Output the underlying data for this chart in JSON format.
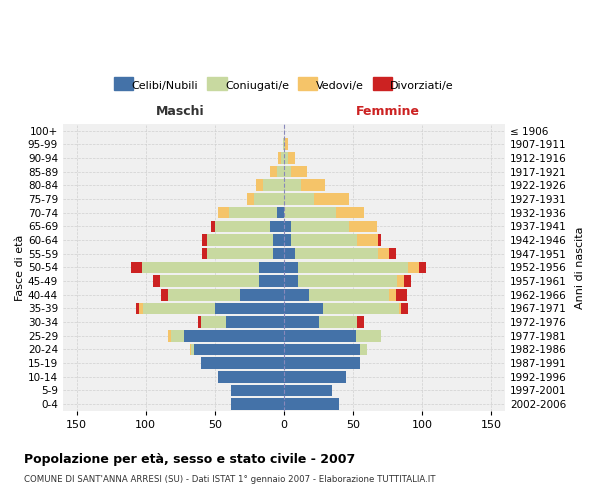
{
  "age_groups": [
    "0-4",
    "5-9",
    "10-14",
    "15-19",
    "20-24",
    "25-29",
    "30-34",
    "35-39",
    "40-44",
    "45-49",
    "50-54",
    "55-59",
    "60-64",
    "65-69",
    "70-74",
    "75-79",
    "80-84",
    "85-89",
    "90-94",
    "95-99",
    "100+"
  ],
  "birth_years": [
    "2002-2006",
    "1997-2001",
    "1992-1996",
    "1987-1991",
    "1982-1986",
    "1977-1981",
    "1972-1976",
    "1967-1971",
    "1962-1966",
    "1957-1961",
    "1952-1956",
    "1947-1951",
    "1942-1946",
    "1937-1941",
    "1932-1936",
    "1927-1931",
    "1922-1926",
    "1917-1921",
    "1912-1916",
    "1907-1911",
    "≤ 1906"
  ],
  "maschi": {
    "celibi": [
      38,
      38,
      48,
      60,
      65,
      72,
      42,
      50,
      32,
      18,
      18,
      8,
      8,
      10,
      5,
      0,
      0,
      0,
      0,
      0,
      0
    ],
    "coniugati": [
      0,
      0,
      0,
      0,
      2,
      10,
      18,
      52,
      52,
      72,
      85,
      48,
      48,
      40,
      35,
      22,
      15,
      5,
      2,
      1,
      0
    ],
    "vedovi": [
      0,
      0,
      0,
      0,
      1,
      2,
      0,
      3,
      0,
      0,
      0,
      0,
      0,
      0,
      8,
      5,
      5,
      5,
      2,
      0,
      0
    ],
    "divorziati": [
      0,
      0,
      0,
      0,
      0,
      0,
      2,
      2,
      5,
      5,
      8,
      3,
      3,
      3,
      0,
      0,
      0,
      0,
      0,
      0,
      0
    ]
  },
  "femmine": {
    "nubili": [
      40,
      35,
      45,
      55,
      55,
      52,
      25,
      28,
      18,
      10,
      10,
      8,
      5,
      5,
      0,
      0,
      0,
      0,
      0,
      0,
      0
    ],
    "coniugate": [
      0,
      0,
      0,
      0,
      5,
      18,
      28,
      55,
      58,
      72,
      80,
      60,
      48,
      42,
      38,
      22,
      12,
      5,
      3,
      1,
      0
    ],
    "vedove": [
      0,
      0,
      0,
      0,
      0,
      0,
      0,
      2,
      5,
      5,
      8,
      8,
      15,
      20,
      20,
      25,
      18,
      12,
      5,
      2,
      0
    ],
    "divorziate": [
      0,
      0,
      0,
      0,
      0,
      0,
      5,
      5,
      8,
      5,
      5,
      5,
      2,
      0,
      0,
      0,
      0,
      0,
      0,
      0,
      0
    ]
  },
  "colors": {
    "celibi": "#4472a8",
    "coniugati": "#c8d9a0",
    "vedovi": "#f5c469",
    "divorziati": "#cc2222"
  },
  "xlim": 160,
  "title": "Popolazione per età, sesso e stato civile - 2007",
  "subtitle": "COMUNE DI SANT'ANNA ARRESI (SU) - Dati ISTAT 1° gennaio 2007 - Elaborazione TUTTITALIA.IT",
  "ylabel_left": "Fasce di età",
  "ylabel_right": "Anni di nascita",
  "label_maschi": "Maschi",
  "label_femmine": "Femmine",
  "bg_color": "#ffffff",
  "plot_bg": "#f0f0f0",
  "grid_color": "#d0d0d0",
  "bar_height": 0.85
}
